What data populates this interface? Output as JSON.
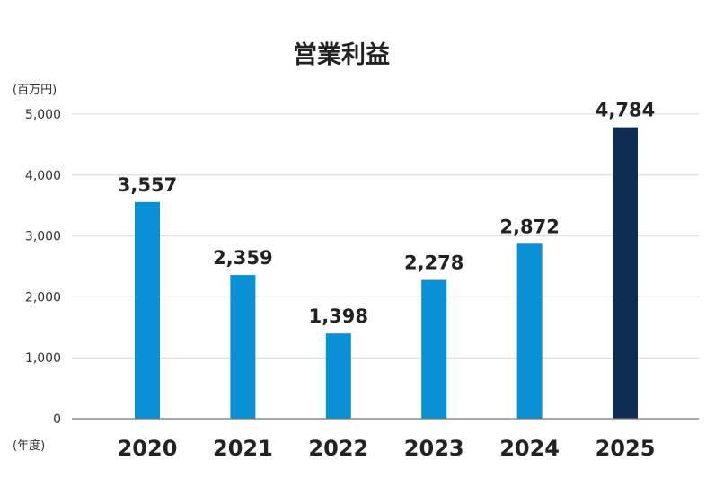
{
  "chart_data": {
    "type": "bar",
    "title": "営業利益",
    "y_unit": "(百万円)",
    "x_unit": "(年度)",
    "categories": [
      "2020",
      "2021",
      "2022",
      "2023",
      "2024",
      "2025"
    ],
    "values": [
      3557,
      2359,
      1398,
      2278,
      2872,
      4784
    ],
    "data_labels": [
      "3,557",
      "2,359",
      "1,398",
      "2,278",
      "2,872",
      "4,784"
    ],
    "ylim": [
      0,
      5000
    ],
    "y_ticks": [
      0,
      1000,
      2000,
      3000,
      4000,
      5000
    ],
    "y_tick_labels": [
      "0",
      "1,000",
      "2,000",
      "3,000",
      "4,000",
      "5,000"
    ],
    "grid": true,
    "colors": {
      "default_bar": "#0a91d5",
      "highlight_bar": "#0f2d52"
    },
    "highlight_index": 5
  }
}
